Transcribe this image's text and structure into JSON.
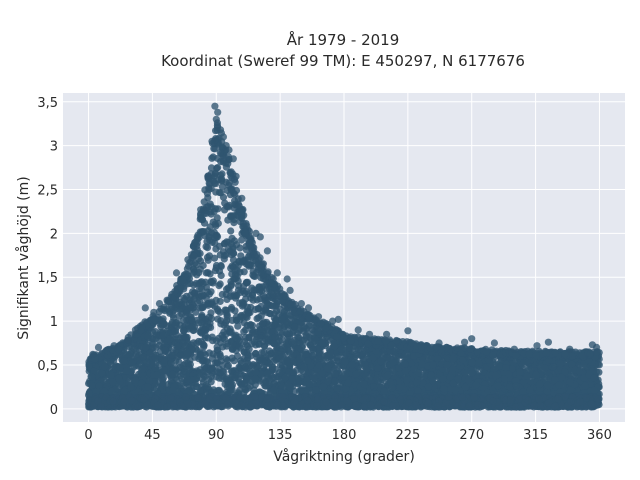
{
  "chart_data": {
    "type": "scatter",
    "title_lines": [
      "År 1979 - 2019",
      "Koordinat (Sweref 99 TM): E 450297, N 6177676"
    ],
    "xlabel": "Vågriktning (grader)",
    "ylabel": "Signifikant våghöjd (m)",
    "xlim": [
      -18,
      378
    ],
    "ylim": [
      -0.15,
      3.6
    ],
    "xticks": [
      0,
      45,
      90,
      135,
      180,
      225,
      270,
      315,
      360
    ],
    "xtick_labels": [
      "0",
      "45",
      "90",
      "135",
      "180",
      "225",
      "270",
      "315",
      "360"
    ],
    "yticks": [
      0,
      0.5,
      1,
      1.5,
      2,
      2.5,
      3,
      3.5
    ],
    "ytick_labels": [
      "0",
      "0,5",
      "1",
      "1,5",
      "2",
      "2,5",
      "3",
      "3,5"
    ],
    "grid": true,
    "colors": {
      "marker": "#2f5570",
      "plot_bg": "#e5e8f0",
      "grid": "#ffffff"
    },
    "envelope": {
      "x": [
        0,
        10,
        20,
        30,
        40,
        50,
        60,
        70,
        80,
        85,
        90,
        95,
        100,
        105,
        110,
        120,
        130,
        140,
        150,
        160,
        170,
        180,
        200,
        220,
        240,
        260,
        280,
        300,
        320,
        340,
        360
      ],
      "max_y": [
        0.6,
        0.65,
        0.72,
        0.85,
        1.0,
        1.12,
        1.35,
        1.62,
        2.3,
        2.8,
        3.35,
        3.1,
        2.8,
        2.5,
        2.2,
        1.75,
        1.5,
        1.25,
        1.15,
        1.05,
        0.95,
        0.85,
        0.8,
        0.78,
        0.72,
        0.7,
        0.68,
        0.66,
        0.66,
        0.66,
        0.65
      ]
    },
    "outliers": [
      {
        "x": 89,
        "y": 3.45
      },
      {
        "x": 91,
        "y": 3.38
      },
      {
        "x": 90,
        "y": 3.3
      },
      {
        "x": 93,
        "y": 3.18
      },
      {
        "x": 95,
        "y": 3.1
      },
      {
        "x": 87,
        "y": 3.05
      },
      {
        "x": 97,
        "y": 3.0
      },
      {
        "x": 99,
        "y": 2.95
      },
      {
        "x": 102,
        "y": 2.85
      },
      {
        "x": 84,
        "y": 2.65
      },
      {
        "x": 81,
        "y": 2.28
      },
      {
        "x": 79,
        "y": 2.27
      },
      {
        "x": 85,
        "y": 2.5
      },
      {
        "x": 104,
        "y": 2.65
      },
      {
        "x": 108,
        "y": 2.4
      },
      {
        "x": 118,
        "y": 2.0
      },
      {
        "x": 121,
        "y": 1.96
      },
      {
        "x": 126,
        "y": 1.8
      },
      {
        "x": 133,
        "y": 1.55
      },
      {
        "x": 140,
        "y": 1.48
      },
      {
        "x": 142,
        "y": 1.35
      },
      {
        "x": 150,
        "y": 1.2
      },
      {
        "x": 155,
        "y": 1.15
      },
      {
        "x": 162,
        "y": 1.05
      },
      {
        "x": 172,
        "y": 1.0
      },
      {
        "x": 176,
        "y": 1.02
      },
      {
        "x": 190,
        "y": 0.9
      },
      {
        "x": 198,
        "y": 0.85
      },
      {
        "x": 225,
        "y": 0.89
      },
      {
        "x": 210,
        "y": 0.85
      },
      {
        "x": 247,
        "y": 0.75
      },
      {
        "x": 265,
        "y": 0.76
      },
      {
        "x": 270,
        "y": 0.8
      },
      {
        "x": 286,
        "y": 0.75
      },
      {
        "x": 300,
        "y": 0.68
      },
      {
        "x": 316,
        "y": 0.72
      },
      {
        "x": 324,
        "y": 0.76
      },
      {
        "x": 339,
        "y": 0.68
      },
      {
        "x": 355,
        "y": 0.73
      },
      {
        "x": 358,
        "y": 0.7
      },
      {
        "x": 62,
        "y": 1.55
      },
      {
        "x": 70,
        "y": 1.7
      },
      {
        "x": 46,
        "y": 1.1
      },
      {
        "x": 40,
        "y": 1.15
      },
      {
        "x": 50,
        "y": 1.2
      },
      {
        "x": 33,
        "y": 0.9
      },
      {
        "x": 28,
        "y": 0.78
      },
      {
        "x": 18,
        "y": 0.72
      },
      {
        "x": 7,
        "y": 0.7
      },
      {
        "x": 3,
        "y": 0.62
      }
    ]
  }
}
